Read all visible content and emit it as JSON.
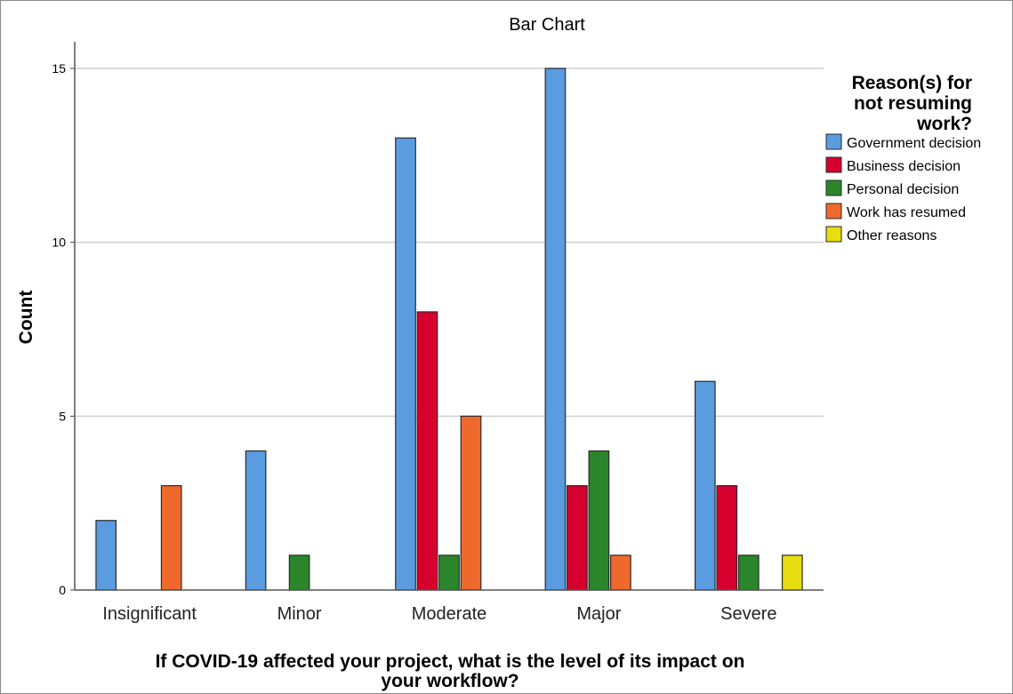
{
  "chart_data": {
    "type": "bar",
    "title": "Bar Chart",
    "xlabel": "If COVID-19 affected your project, what is the level of its impact on your workflow?",
    "ylabel": "Count",
    "ylim": [
      0,
      16
    ],
    "yticks": [
      0,
      5,
      10,
      15
    ],
    "grid": true,
    "legend_position": "right",
    "legend_title": "Reason(s) for not resuming work?",
    "categories": [
      "Insignificant",
      "Minor",
      "Moderate",
      "Major",
      "Severe"
    ],
    "series": [
      {
        "name": "Government decision",
        "color": "#5b9be0",
        "values": [
          2,
          4,
          13,
          15,
          6
        ]
      },
      {
        "name": "Business decision",
        "color": "#d6002e",
        "values": [
          0,
          0,
          8,
          3,
          3
        ]
      },
      {
        "name": "Personal decision",
        "color": "#2b862b",
        "values": [
          0,
          1,
          1,
          4,
          1
        ]
      },
      {
        "name": "Work has resumed",
        "color": "#f0692c",
        "values": [
          3,
          0,
          5,
          1,
          0
        ]
      },
      {
        "name": "Other reasons",
        "color": "#e8dd10",
        "values": [
          0,
          0,
          0,
          0,
          1
        ]
      }
    ]
  }
}
